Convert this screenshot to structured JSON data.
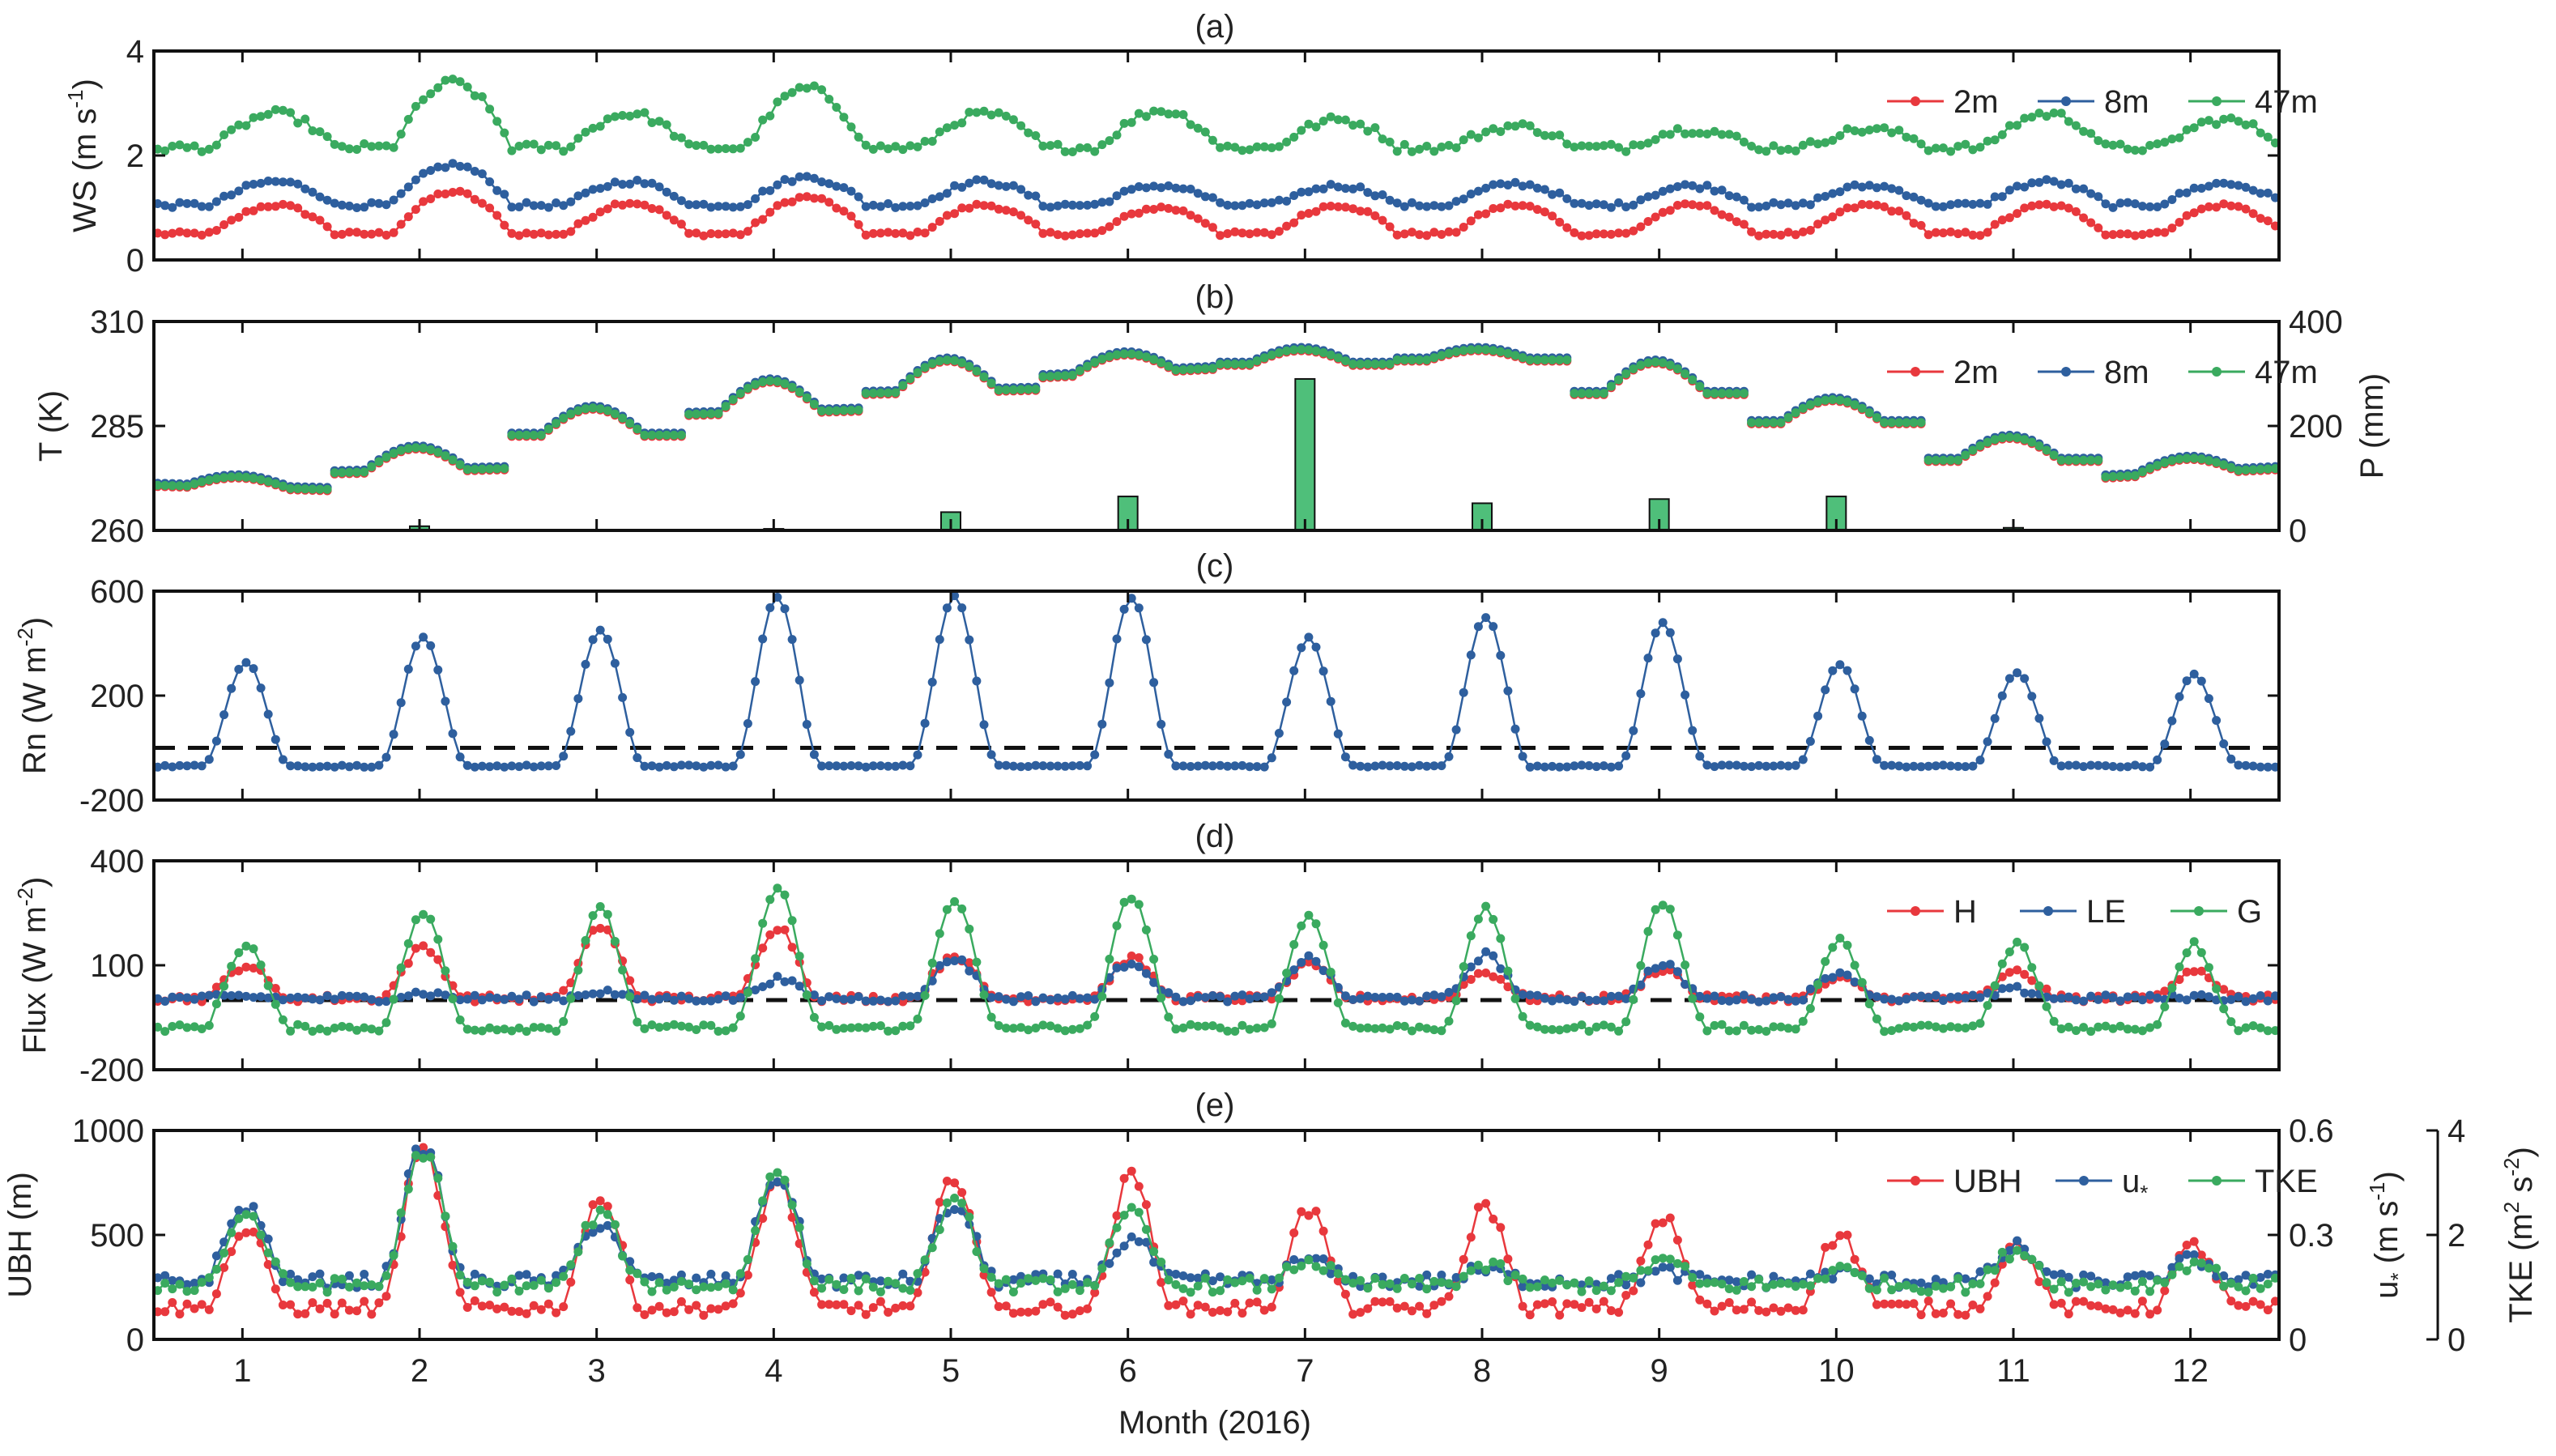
{
  "figure": {
    "xlabel": "Month (2016)",
    "month_ticks": [
      "1",
      "2",
      "3",
      "4",
      "5",
      "6",
      "7",
      "8",
      "9",
      "10",
      "11",
      "12"
    ]
  },
  "colors": {
    "red": "#e8383d",
    "blue": "#2e5f9e",
    "green": "#3aaa5f",
    "bar_fill": "#4fbf7a",
    "dashed": "#111111"
  },
  "chart_data": [
    {
      "id": "a",
      "type": "line",
      "panel_label": "(a)",
      "ylabel": "WS (m s",
      "ylabel_sup": "-1",
      "ylabel_tail": ")",
      "ylim": [
        0,
        4
      ],
      "yticks": [
        "0",
        "2",
        "4"
      ],
      "legend": [
        "2m",
        "8m",
        "47m"
      ],
      "series": [
        {
          "name": "2m",
          "color": "red",
          "base": 0.55,
          "amp": 0.5,
          "noise": 0.04,
          "peak_scale": [
            1.0,
            1.5,
            1.1,
            1.3,
            1.0,
            0.9,
            1.0,
            1.0,
            1.0,
            1.0,
            1.0,
            1.0
          ]
        },
        {
          "name": "8m",
          "color": "blue",
          "base": 1.1,
          "amp": 0.4,
          "noise": 0.05,
          "peak_scale": [
            1.0,
            1.8,
            1.0,
            1.2,
            1.0,
            0.8,
            0.8,
            0.9,
            0.8,
            0.8,
            1.0,
            0.9
          ]
        },
        {
          "name": "47m",
          "color": "green",
          "base": 2.2,
          "amp": 0.6,
          "noise": 0.08,
          "peak_scale": [
            1.0,
            2.0,
            1.0,
            1.8,
            1.0,
            1.1,
            0.8,
            0.6,
            0.5,
            0.5,
            1.0,
            0.8
          ]
        }
      ]
    },
    {
      "id": "b",
      "type": "line+bar",
      "panel_label": "(b)",
      "ylabel": "T (K)",
      "ylabel_right": "P (mm)",
      "ylim": [
        260,
        310
      ],
      "yticks": [
        "260",
        "285",
        "310"
      ],
      "ylim_right": [
        0,
        400
      ],
      "yticks_right": [
        "0",
        "200",
        "400"
      ],
      "legend": [
        "2m",
        "8m",
        "47m"
      ],
      "monthly_T": [
        {
          "month": 1,
          "start": 271,
          "peak": 273,
          "end": 270
        },
        {
          "month": 2,
          "start": 274,
          "peak": 280,
          "end": 275
        },
        {
          "month": 3,
          "start": 283,
          "peak": 289,
          "end": 283
        },
        {
          "month": 4,
          "start": 288,
          "peak": 296,
          "end": 289
        },
        {
          "month": 5,
          "start": 293,
          "peak": 301,
          "end": 294
        },
        {
          "month": 6,
          "start": 297,
          "peak": 303,
          "end": 299
        },
        {
          "month": 7,
          "start": 300,
          "peak": 303,
          "end": 300
        },
        {
          "month": 8,
          "start": 301,
          "peak": 303,
          "end": 301
        },
        {
          "month": 9,
          "start": 293,
          "peak": 300,
          "end": 293
        },
        {
          "month": 10,
          "start": 286,
          "peak": 291,
          "end": 286
        },
        {
          "month": 11,
          "start": 277,
          "peak": 282,
          "end": 277
        },
        {
          "month": 12,
          "start": 273,
          "peak": 278,
          "end": 275
        }
      ],
      "precip_mm": [
        0,
        8,
        0,
        3,
        35,
        65,
        290,
        52,
        60,
        65,
        5,
        0
      ]
    },
    {
      "id": "c",
      "type": "line",
      "panel_label": "(c)",
      "ylabel": "Rn (W m",
      "ylabel_sup": "-2",
      "ylabel_tail": ")",
      "ylim": [
        -200,
        600
      ],
      "yticks": [
        "-200",
        "200",
        "600"
      ],
      "zero_line": 0,
      "series": [
        {
          "name": "Rn",
          "color": "blue",
          "night": -70,
          "peaks": [
            330,
            420,
            450,
            580,
            580,
            575,
            420,
            500,
            480,
            320,
            290,
            280
          ]
        }
      ]
    },
    {
      "id": "d",
      "type": "line",
      "panel_label": "(d)",
      "ylabel": "Flux (W m",
      "ylabel_sup": "-2",
      "ylabel_tail": ")",
      "ylim": [
        -200,
        400
      ],
      "yticks": [
        "-200",
        "100",
        "400"
      ],
      "zero_line": 0,
      "legend": [
        "H",
        "LE",
        "G"
      ],
      "series": [
        {
          "name": "H",
          "color": "red",
          "night": 5,
          "peaks": [
            100,
            150,
            210,
            210,
            130,
            120,
            100,
            80,
            90,
            60,
            80,
            90
          ]
        },
        {
          "name": "LE",
          "color": "blue",
          "night": 5,
          "peaks": [
            10,
            20,
            25,
            60,
            120,
            110,
            120,
            130,
            100,
            80,
            30,
            10
          ]
        },
        {
          "name": "G",
          "color": "green",
          "night": -80,
          "peaks": [
            160,
            250,
            260,
            320,
            290,
            300,
            240,
            260,
            280,
            170,
            160,
            160
          ]
        }
      ]
    },
    {
      "id": "e",
      "type": "line",
      "panel_label": "(e)",
      "ylabel": "UBH (m)",
      "ylim": [
        0,
        1000
      ],
      "yticks": [
        "0",
        "500",
        "1000"
      ],
      "ylabel_right": "u",
      "ylabel_right_sub": "*",
      "ylabel_right_tail": " (m s",
      "ylabel_right_sup": "-1",
      "ylim_right": [
        0,
        0.6
      ],
      "yticks_right": [
        "0",
        "0.3",
        "0.6"
      ],
      "ylabel_right2": "TKE (m",
      "ylabel_right2_sup1": "2",
      "ylabel_right2_mid": " s",
      "ylabel_right2_sup2": "-2",
      "ylim_right2": [
        0,
        4
      ],
      "yticks_right2": [
        "0",
        "2",
        "4"
      ],
      "legend": [
        "UBH",
        "u",
        "TKE"
      ],
      "legend_sub": "*",
      "series": [
        {
          "name": "UBH",
          "color": "red",
          "night": 150,
          "peaks": [
            520,
            900,
            680,
            760,
            780,
            780,
            620,
            640,
            580,
            500,
            450,
            450
          ]
        },
        {
          "name": "u*",
          "color": "blue",
          "night": 280,
          "peaks": [
            640,
            920,
            560,
            780,
            640,
            480,
            380,
            330,
            320,
            320,
            440,
            380
          ]
        },
        {
          "name": "TKE",
          "color": "green",
          "night": 260,
          "peaks": [
            600,
            900,
            600,
            800,
            650,
            600,
            380,
            350,
            380,
            330,
            430,
            370
          ]
        }
      ]
    }
  ]
}
